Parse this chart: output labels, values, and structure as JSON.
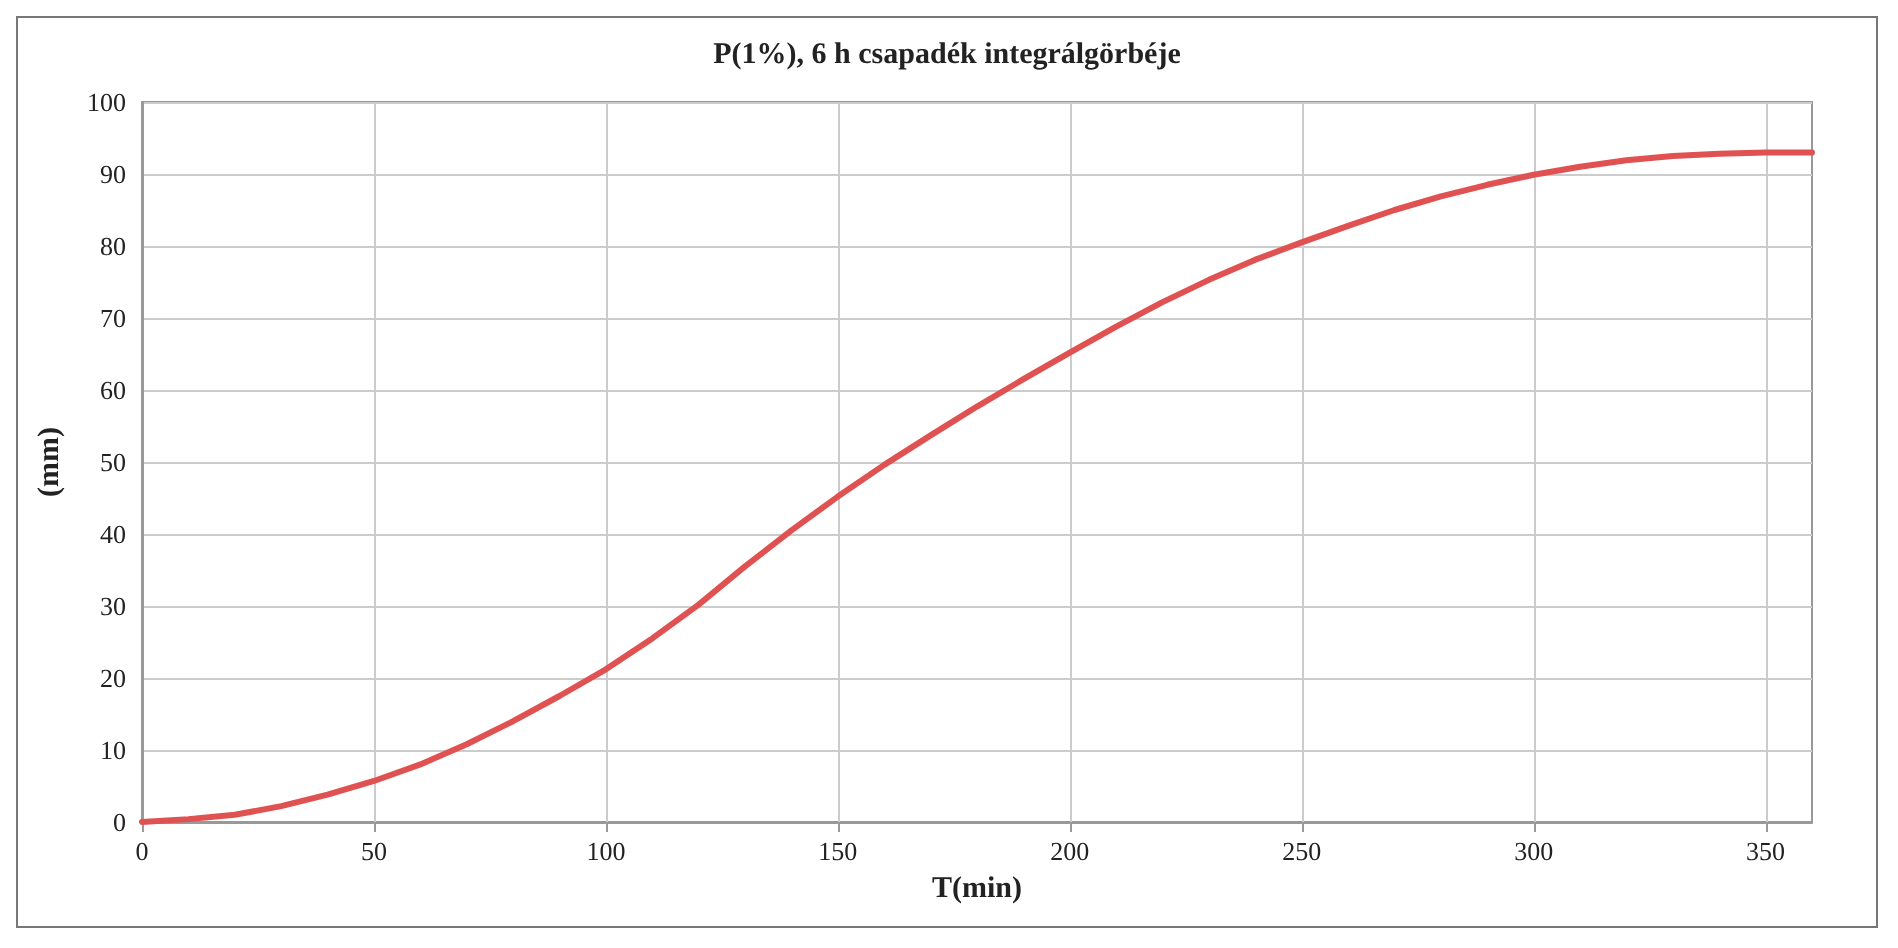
{
  "chart_data": {
    "type": "line",
    "title": "P(1%), 6 h csapadék integrálgörbéje",
    "xlabel": "T(min)",
    "ylabel": "(mm)",
    "x": [
      0,
      10,
      20,
      30,
      40,
      50,
      60,
      70,
      80,
      90,
      100,
      110,
      120,
      130,
      140,
      150,
      160,
      170,
      180,
      190,
      200,
      210,
      220,
      230,
      240,
      250,
      260,
      270,
      280,
      290,
      300,
      310,
      320,
      330,
      340,
      350,
      360
    ],
    "series": [
      {
        "color": "#e05252",
        "values": [
          0,
          0.4,
          1,
          2.2,
          3.8,
          5.7,
          8,
          10.8,
          14,
          17.5,
          21.2,
          25.5,
          30.2,
          35.5,
          40.5,
          45.2,
          49.6,
          53.7,
          57.7,
          61.5,
          65.2,
          68.8,
          72.2,
          75.3,
          78.1,
          80.5,
          82.8,
          85,
          86.9,
          88.5,
          89.9,
          91,
          91.9,
          92.5,
          92.8,
          93,
          93
        ]
      }
    ],
    "xlim": [
      0,
      360
    ],
    "xticks": [
      0,
      50,
      100,
      150,
      200,
      250,
      300,
      350
    ],
    "ylim": [
      0,
      100
    ],
    "yticks": [
      0,
      10,
      20,
      30,
      40,
      50,
      60,
      70,
      80,
      90,
      100
    ],
    "grid": true,
    "marker": "none",
    "line_style": "solid"
  }
}
